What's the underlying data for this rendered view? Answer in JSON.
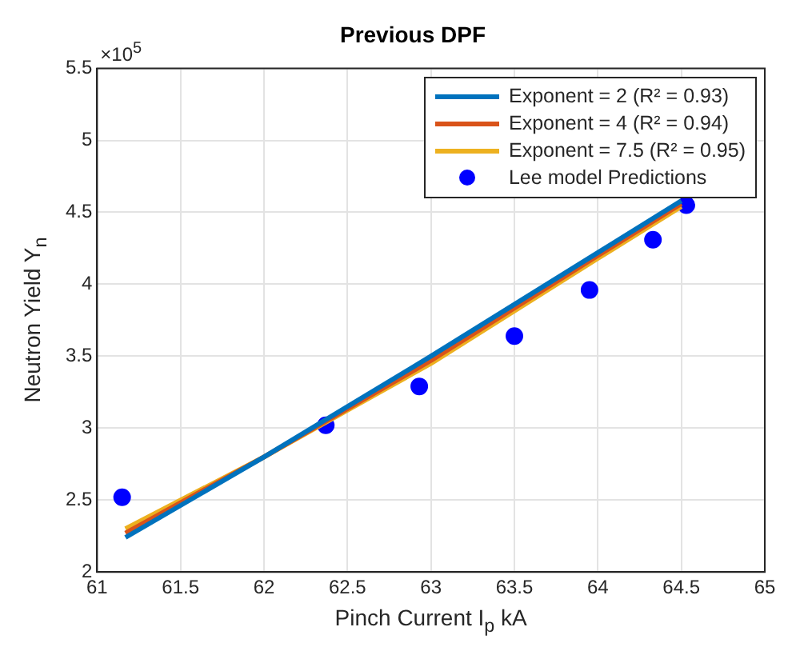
{
  "chart_data": {
    "type": "line",
    "title": "Previous DPF",
    "xlabel": "Pinch Current I$_{p}$ kA",
    "ylabel": "Neutron Yield Y$_{n}$",
    "annotations": [
      "×10$^{5}$"
    ],
    "xlim": [
      61,
      65
    ],
    "xticks": [
      61,
      61.5,
      62,
      62.5,
      63,
      63.5,
      64,
      64.5,
      65
    ],
    "ylim": [
      2,
      5.5
    ],
    "yticks": [
      2,
      2.5,
      3,
      3.5,
      4,
      4.5,
      5,
      5.5
    ],
    "grid": true,
    "legend": "top right",
    "series": [
      {
        "name": "Exponent = 2 (R² = 0.93)",
        "color": "#0072bd",
        "marker": "none",
        "x": [
          61.17,
          62,
          63,
          64,
          64.5
        ],
        "values": [
          2.24,
          2.8,
          3.5,
          4.22,
          4.58
        ]
      },
      {
        "name": "Exponent = 4 (R² = 0.94)",
        "color": "#d95319",
        "marker": "none",
        "x": [
          61.17,
          62,
          63,
          64,
          64.5
        ],
        "values": [
          2.27,
          2.8,
          3.47,
          4.2,
          4.56
        ]
      },
      {
        "name": "Exponent = 7.5 (R² = 0.95)",
        "color": "#edb120",
        "marker": "none",
        "x": [
          61.17,
          62,
          63,
          64,
          64.5
        ],
        "values": [
          2.3,
          2.8,
          3.45,
          4.18,
          4.54
        ]
      },
      {
        "name": "Lee model Predictions",
        "type": "scatter",
        "color": "#0000ff",
        "marker": "circle",
        "x": [
          61.15,
          62.37,
          62.93,
          63.5,
          63.95,
          64.33,
          64.53
        ],
        "values": [
          2.52,
          3.02,
          3.29,
          3.64,
          3.96,
          4.31,
          4.55
        ]
      }
    ]
  }
}
